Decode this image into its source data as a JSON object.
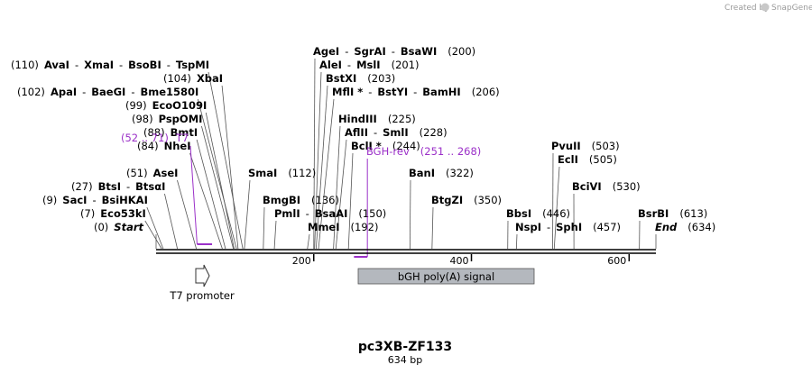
{
  "credit": {
    "text": "Created by",
    "brand": "SnapGene"
  },
  "plasmid": {
    "name": "pc3XB-ZF133",
    "length_label": "634 bp",
    "length": 634
  },
  "ruler": {
    "ticks": [
      {
        "pos": 200,
        "label": "200"
      },
      {
        "pos": 400,
        "label": "400"
      },
      {
        "pos": 600,
        "label": "600"
      }
    ]
  },
  "sites": [
    {
      "id": "start",
      "parts": [
        {
          "t": "(0)",
          "s": "pos"
        },
        {
          "t": "Start",
          "s": "italic"
        }
      ],
      "pos": 0,
      "row": 0,
      "x": 104
    },
    {
      "id": "eco53ki",
      "parts": [
        {
          "t": "(7)",
          "s": "pos"
        },
        {
          "t": "Eco53kI",
          "s": "enz"
        }
      ],
      "pos": 7,
      "row": 1,
      "x": 89
    },
    {
      "id": "saci",
      "parts": [
        {
          "t": "(9)",
          "s": "pos"
        },
        {
          "t": "SacI",
          "s": "enz"
        },
        {
          "t": "-",
          "s": "sep"
        },
        {
          "t": "BsiHKAI",
          "s": "enz"
        }
      ],
      "pos": 9,
      "row": 2,
      "x": 47
    },
    {
      "id": "btsi",
      "parts": [
        {
          "t": "(27)",
          "s": "pos"
        },
        {
          "t": "BtsI",
          "s": "enz"
        },
        {
          "t": "-",
          "s": "sep"
        },
        {
          "t": "BtsαI",
          "s": "enz"
        }
      ],
      "pos": 27,
      "row": 3,
      "x": 79
    },
    {
      "id": "asei",
      "parts": [
        {
          "t": "(51)",
          "s": "pos"
        },
        {
          "t": "AseI",
          "s": "enz"
        }
      ],
      "pos": 51,
      "row": 4,
      "x": 140
    },
    {
      "id": "nhei",
      "parts": [
        {
          "t": "(84)",
          "s": "pos"
        },
        {
          "t": "NheI",
          "s": "enz"
        }
      ],
      "pos": 84,
      "row": 6,
      "x": 152
    },
    {
      "id": "bmti",
      "parts": [
        {
          "t": "(88)",
          "s": "pos"
        },
        {
          "t": "BmtI",
          "s": "enz"
        }
      ],
      "pos": 88,
      "row": 7,
      "x": 159
    },
    {
      "id": "pspomi",
      "parts": [
        {
          "t": "(98)",
          "s": "pos"
        },
        {
          "t": "PspOMI",
          "s": "enz"
        }
      ],
      "pos": 98,
      "row": 8,
      "x": 146
    },
    {
      "id": "ecoo109i",
      "parts": [
        {
          "t": "(99)",
          "s": "pos"
        },
        {
          "t": "EcoO109I",
          "s": "enz"
        }
      ],
      "pos": 99,
      "row": 9,
      "x": 139
    },
    {
      "id": "apai",
      "parts": [
        {
          "t": "(102)",
          "s": "pos"
        },
        {
          "t": "ApaI",
          "s": "enz"
        },
        {
          "t": "-",
          "s": "sep"
        },
        {
          "t": "BaeGI",
          "s": "enz"
        },
        {
          "t": "-",
          "s": "sep"
        },
        {
          "t": "Bme1580I",
          "s": "enz"
        }
      ],
      "pos": 102,
      "row": 10,
      "x": 19
    },
    {
      "id": "xbai",
      "parts": [
        {
          "t": "(104)",
          "s": "pos"
        },
        {
          "t": "XbaI",
          "s": "enz"
        }
      ],
      "pos": 104,
      "row": 11,
      "x": 181
    },
    {
      "id": "avai",
      "parts": [
        {
          "t": "(110)",
          "s": "pos"
        },
        {
          "t": "AvaI",
          "s": "enz"
        },
        {
          "t": "-",
          "s": "sep"
        },
        {
          "t": "XmaI",
          "s": "enz"
        },
        {
          "t": "-",
          "s": "sep"
        },
        {
          "t": "BsoBI",
          "s": "enz"
        },
        {
          "t": "-",
          "s": "sep"
        },
        {
          "t": "TspMI",
          "s": "enz"
        }
      ],
      "pos": 110,
      "row": 12,
      "x": 12
    },
    {
      "id": "smai",
      "parts": [
        {
          "t": "SmaI",
          "s": "enz"
        },
        {
          "t": "(112)",
          "s": "pos"
        }
      ],
      "pos": 112,
      "row": 4,
      "x": 275,
      "side": "right"
    },
    {
      "id": "bmgbi",
      "parts": [
        {
          "t": "BmgBI",
          "s": "enz"
        },
        {
          "t": "(136)",
          "s": "pos"
        }
      ],
      "pos": 136,
      "row": 2,
      "x": 291,
      "side": "right"
    },
    {
      "id": "pmli",
      "parts": [
        {
          "t": "PmlI",
          "s": "enz"
        },
        {
          "t": "-",
          "s": "sep"
        },
        {
          "t": "BsaAI",
          "s": "enz"
        },
        {
          "t": "(150)",
          "s": "pos"
        }
      ],
      "pos": 150,
      "row": 1,
      "x": 304,
      "side": "right"
    },
    {
      "id": "mmei",
      "parts": [
        {
          "t": "MmeI",
          "s": "enz"
        },
        {
          "t": "(192)",
          "s": "pos"
        }
      ],
      "pos": 192,
      "row": 0,
      "x": 341,
      "side": "right"
    },
    {
      "id": "bcli",
      "parts": [
        {
          "t": "BclI *",
          "s": "enz"
        },
        {
          "t": "(244)",
          "s": "pos"
        }
      ],
      "pos": 244,
      "row": 6,
      "x": 389,
      "side": "right"
    },
    {
      "id": "aflii",
      "parts": [
        {
          "t": "AflII",
          "s": "enz"
        },
        {
          "t": "-",
          "s": "sep"
        },
        {
          "t": "SmlI",
          "s": "enz"
        },
        {
          "t": "(228)",
          "s": "pos"
        }
      ],
      "pos": 228,
      "row": 7,
      "x": 382,
      "side": "right"
    },
    {
      "id": "hindiii",
      "parts": [
        {
          "t": "HindIII",
          "s": "enz"
        },
        {
          "t": "(225)",
          "s": "pos"
        }
      ],
      "pos": 225,
      "row": 8,
      "x": 375,
      "side": "right"
    },
    {
      "id": "mfli",
      "parts": [
        {
          "t": "MflI *",
          "s": "enz"
        },
        {
          "t": "-",
          "s": "sep"
        },
        {
          "t": "BstYI",
          "s": "enz"
        },
        {
          "t": "-",
          "s": "sep"
        },
        {
          "t": "BamHI",
          "s": "enz"
        },
        {
          "t": "(206)",
          "s": "pos"
        }
      ],
      "pos": 206,
      "row": 10,
      "x": 368,
      "side": "right"
    },
    {
      "id": "bstxi",
      "parts": [
        {
          "t": "BstXI",
          "s": "enz"
        },
        {
          "t": "(203)",
          "s": "pos"
        }
      ],
      "pos": 203,
      "row": 11,
      "x": 361,
      "side": "right"
    },
    {
      "id": "alei",
      "parts": [
        {
          "t": "AleI",
          "s": "enz"
        },
        {
          "t": "-",
          "s": "sep"
        },
        {
          "t": "MslI",
          "s": "enz"
        },
        {
          "t": "(201)",
          "s": "pos"
        }
      ],
      "pos": 201,
      "row": 12,
      "x": 354,
      "side": "right"
    },
    {
      "id": "agei",
      "parts": [
        {
          "t": "AgeI",
          "s": "enz"
        },
        {
          "t": "-",
          "s": "sep"
        },
        {
          "t": "SgrAI",
          "s": "enz"
        },
        {
          "t": "-",
          "s": "sep"
        },
        {
          "t": "BsaWI",
          "s": "enz"
        },
        {
          "t": "(200)",
          "s": "pos"
        }
      ],
      "pos": 200,
      "row": 13,
      "x": 347,
      "side": "right"
    },
    {
      "id": "bani",
      "parts": [
        {
          "t": "BanI",
          "s": "enz"
        },
        {
          "t": "(322)",
          "s": "pos"
        }
      ],
      "pos": 322,
      "row": 4,
      "x": 453,
      "side": "right"
    },
    {
      "id": "btgzi",
      "parts": [
        {
          "t": "BtgZI",
          "s": "enz"
        },
        {
          "t": "(350)",
          "s": "pos"
        }
      ],
      "pos": 350,
      "row": 2,
      "x": 478,
      "side": "right"
    },
    {
      "id": "bbsi",
      "parts": [
        {
          "t": "BbsI",
          "s": "enz"
        },
        {
          "t": "(446)",
          "s": "pos"
        }
      ],
      "pos": 446,
      "row": 1,
      "x": 561,
      "side": "right"
    },
    {
      "id": "nspi",
      "parts": [
        {
          "t": "NspI",
          "s": "enz"
        },
        {
          "t": "-",
          "s": "sep"
        },
        {
          "t": "SphI",
          "s": "enz"
        },
        {
          "t": "(457)",
          "s": "pos"
        }
      ],
      "pos": 457,
      "row": 0,
      "x": 571,
      "side": "right"
    },
    {
      "id": "bcivi",
      "parts": [
        {
          "t": "BciVI",
          "s": "enz"
        },
        {
          "t": "(530)",
          "s": "pos"
        }
      ],
      "pos": 530,
      "row": 3,
      "x": 634,
      "side": "right"
    },
    {
      "id": "ecli",
      "parts": [
        {
          "t": "EclI",
          "s": "enz"
        },
        {
          "t": "(505)",
          "s": "pos"
        }
      ],
      "pos": 505,
      "row": 5,
      "x": 618,
      "side": "right"
    },
    {
      "id": "pvuii",
      "parts": [
        {
          "t": "PvuII",
          "s": "enz"
        },
        {
          "t": "(503)",
          "s": "pos"
        }
      ],
      "pos": 503,
      "row": 6,
      "x": 611,
      "side": "right"
    },
    {
      "id": "bsrbi",
      "parts": [
        {
          "t": "BsrBI",
          "s": "enz"
        },
        {
          "t": "(613)",
          "s": "pos"
        }
      ],
      "pos": 613,
      "row": 1,
      "x": 707,
      "side": "right"
    },
    {
      "id": "end",
      "parts": [
        {
          "t": "End",
          "s": "italic"
        },
        {
          "t": "(634)",
          "s": "pos"
        }
      ],
      "pos": 634,
      "row": 0,
      "x": 726,
      "side": "right"
    }
  ],
  "primers": [
    {
      "id": "t7",
      "range": "(52 .. 71)",
      "name": "T7",
      "start": 52,
      "end": 71,
      "strand": "forward"
    },
    {
      "id": "bgh-rev",
      "name": "BGH-rev",
      "range": "(251 .. 268)",
      "start": 251,
      "end": 268,
      "strand": "reverse"
    }
  ],
  "features": [
    {
      "id": "t7-promoter",
      "name": "T7 promoter",
      "start": 52,
      "end": 71,
      "type": "promoter"
    },
    {
      "id": "bgh-polya",
      "name": "bGH poly(A) signal",
      "start": 256,
      "end": 480,
      "type": "polyA",
      "color": "#b4b8be"
    }
  ],
  "colors": {
    "primer": "#9b30c8",
    "backbone": "#000000",
    "leader": "#555555"
  }
}
